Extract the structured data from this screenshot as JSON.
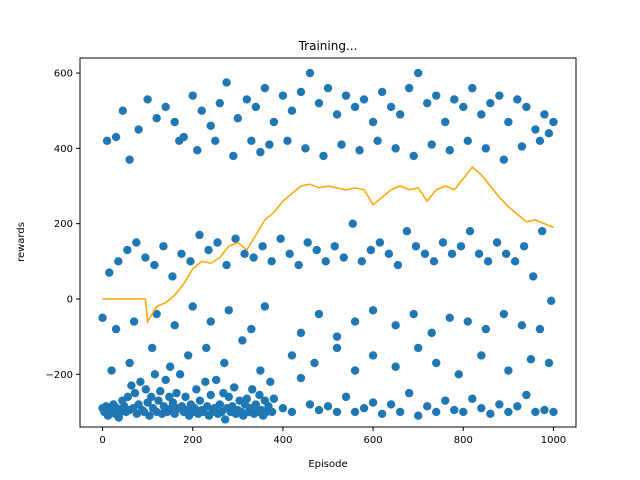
{
  "chart_data": {
    "type": "scatter",
    "title": "Training...",
    "xlabel": "Episode",
    "ylabel": "rewards",
    "xlim": [
      -50,
      1050
    ],
    "ylim": [
      -340,
      640
    ],
    "xticks": [
      0,
      200,
      400,
      600,
      800,
      1000
    ],
    "yticks": [
      -200,
      0,
      200,
      400,
      600
    ],
    "grid": false,
    "colors": {
      "scatter": "#1f77b4",
      "line": "#ffa500"
    },
    "points": [
      [
        0,
        -290
      ],
      [
        4,
        -300
      ],
      [
        8,
        -285
      ],
      [
        12,
        -310
      ],
      [
        16,
        -295
      ],
      [
        20,
        -300
      ],
      [
        24,
        -280
      ],
      [
        28,
        -305
      ],
      [
        32,
        -290
      ],
      [
        36,
        -315
      ],
      [
        40,
        -300
      ],
      [
        44,
        -270
      ],
      [
        48,
        -285
      ],
      [
        52,
        -300
      ],
      [
        56,
        -260
      ],
      [
        60,
        -295
      ],
      [
        64,
        -230
      ],
      [
        68,
        -290
      ],
      [
        72,
        -250
      ],
      [
        76,
        -305
      ],
      [
        80,
        -280
      ],
      [
        84,
        -220
      ],
      [
        88,
        -295
      ],
      [
        92,
        -300
      ],
      [
        96,
        -240
      ],
      [
        100,
        -275
      ],
      [
        104,
        -310
      ],
      [
        108,
        -260
      ],
      [
        112,
        -290
      ],
      [
        116,
        -200
      ],
      [
        120,
        -300
      ],
      [
        124,
        -270
      ],
      [
        128,
        -245
      ],
      [
        132,
        -305
      ],
      [
        136,
        -285
      ],
      [
        140,
        -215
      ],
      [
        144,
        -300
      ],
      [
        148,
        -260
      ],
      [
        152,
        -290
      ],
      [
        156,
        -275
      ],
      [
        160,
        -305
      ],
      [
        164,
        -250
      ],
      [
        168,
        -290
      ],
      [
        172,
        -200
      ],
      [
        176,
        -285
      ],
      [
        180,
        -300
      ],
      [
        184,
        -260
      ],
      [
        188,
        -295
      ],
      [
        192,
        -310
      ],
      [
        196,
        -280
      ],
      [
        200,
        -300
      ],
      [
        204,
        -290
      ],
      [
        208,
        -240
      ],
      [
        212,
        -305
      ],
      [
        216,
        -270
      ],
      [
        220,
        -295
      ],
      [
        224,
        -300
      ],
      [
        228,
        -220
      ],
      [
        232,
        -285
      ],
      [
        236,
        -310
      ],
      [
        240,
        -255
      ],
      [
        244,
        -300
      ],
      [
        248,
        -290
      ],
      [
        252,
        -215
      ],
      [
        256,
        -305
      ],
      [
        260,
        -280
      ],
      [
        264,
        -300
      ],
      [
        268,
        -250
      ],
      [
        272,
        -320
      ],
      [
        276,
        -290
      ],
      [
        280,
        -260
      ],
      [
        284,
        -300
      ],
      [
        288,
        -285
      ],
      [
        292,
        -235
      ],
      [
        296,
        -305
      ],
      [
        300,
        -295
      ],
      [
        304,
        -270
      ],
      [
        308,
        -300
      ],
      [
        312,
        -310
      ],
      [
        316,
        -280
      ],
      [
        320,
        -265
      ],
      [
        324,
        -300
      ],
      [
        328,
        -290
      ],
      [
        332,
        -240
      ],
      [
        336,
        -305
      ],
      [
        340,
        -280
      ],
      [
        344,
        -300
      ],
      [
        348,
        -255
      ],
      [
        352,
        -295
      ],
      [
        356,
        -310
      ],
      [
        360,
        -270
      ],
      [
        364,
        -300
      ],
      [
        368,
        -285
      ],
      [
        372,
        -220
      ],
      [
        376,
        -300
      ],
      [
        380,
        -265
      ],
      [
        400,
        -290
      ],
      [
        420,
        -300
      ],
      [
        440,
        -210
      ],
      [
        460,
        -280
      ],
      [
        480,
        -295
      ],
      [
        500,
        -285
      ],
      [
        520,
        -300
      ],
      [
        540,
        -260
      ],
      [
        560,
        -300
      ],
      [
        580,
        -290
      ],
      [
        600,
        -275
      ],
      [
        620,
        -305
      ],
      [
        640,
        -280
      ],
      [
        660,
        -300
      ],
      [
        680,
        -250
      ],
      [
        700,
        -310
      ],
      [
        720,
        -285
      ],
      [
        740,
        -300
      ],
      [
        760,
        -270
      ],
      [
        780,
        -295
      ],
      [
        800,
        -300
      ],
      [
        820,
        -265
      ],
      [
        840,
        -290
      ],
      [
        860,
        -305
      ],
      [
        880,
        -280
      ],
      [
        900,
        -300
      ],
      [
        920,
        -285
      ],
      [
        940,
        -255
      ],
      [
        960,
        -300
      ],
      [
        980,
        -295
      ],
      [
        1000,
        -300
      ],
      [
        20,
        -190
      ],
      [
        60,
        -170
      ],
      [
        110,
        -130
      ],
      [
        150,
        -180
      ],
      [
        190,
        -150
      ],
      [
        230,
        -130
      ],
      [
        270,
        -170
      ],
      [
        310,
        -110
      ],
      [
        350,
        -190
      ],
      [
        420,
        -150
      ],
      [
        470,
        -170
      ],
      [
        520,
        -130
      ],
      [
        560,
        -190
      ],
      [
        600,
        -150
      ],
      [
        650,
        -180
      ],
      [
        700,
        -130
      ],
      [
        740,
        -170
      ],
      [
        790,
        -200
      ],
      [
        840,
        -150
      ],
      [
        900,
        -190
      ],
      [
        950,
        -160
      ],
      [
        990,
        -170
      ],
      [
        30,
        -80
      ],
      [
        70,
        -60
      ],
      [
        120,
        -40
      ],
      [
        160,
        -70
      ],
      [
        200,
        -20
      ],
      [
        240,
        -60
      ],
      [
        280,
        -30
      ],
      [
        330,
        -80
      ],
      [
        360,
        -20
      ],
      [
        440,
        -90
      ],
      [
        480,
        -40
      ],
      [
        520,
        -100
      ],
      [
        560,
        -60
      ],
      [
        600,
        -30
      ],
      [
        650,
        -70
      ],
      [
        690,
        -40
      ],
      [
        730,
        -90
      ],
      [
        770,
        -50
      ],
      [
        810,
        -60
      ],
      [
        850,
        -80
      ],
      [
        890,
        -40
      ],
      [
        930,
        -70
      ],
      [
        970,
        -80
      ],
      [
        0,
        -50
      ],
      [
        15,
        70
      ],
      [
        35,
        100
      ],
      [
        55,
        130
      ],
      [
        75,
        150
      ],
      [
        95,
        110
      ],
      [
        115,
        90
      ],
      [
        135,
        140
      ],
      [
        155,
        60
      ],
      [
        175,
        120
      ],
      [
        195,
        100
      ],
      [
        215,
        170
      ],
      [
        235,
        130
      ],
      [
        255,
        150
      ],
      [
        275,
        90
      ],
      [
        295,
        160
      ],
      [
        315,
        120
      ],
      [
        335,
        110
      ],
      [
        355,
        140
      ],
      [
        375,
        100
      ],
      [
        395,
        160
      ],
      [
        415,
        120
      ],
      [
        435,
        90
      ],
      [
        455,
        150
      ],
      [
        475,
        130
      ],
      [
        495,
        100
      ],
      [
        515,
        140
      ],
      [
        535,
        110
      ],
      [
        555,
        200
      ],
      [
        575,
        100
      ],
      [
        595,
        130
      ],
      [
        615,
        150
      ],
      [
        635,
        120
      ],
      [
        655,
        90
      ],
      [
        675,
        180
      ],
      [
        695,
        140
      ],
      [
        715,
        120
      ],
      [
        735,
        100
      ],
      [
        755,
        150
      ],
      [
        775,
        120
      ],
      [
        795,
        140
      ],
      [
        815,
        180
      ],
      [
        835,
        120
      ],
      [
        855,
        100
      ],
      [
        875,
        150
      ],
      [
        895,
        120
      ],
      [
        915,
        100
      ],
      [
        935,
        140
      ],
      [
        955,
        60
      ],
      [
        975,
        180
      ],
      [
        995,
        -5
      ],
      [
        10,
        420
      ],
      [
        30,
        430
      ],
      [
        45,
        500
      ],
      [
        60,
        370
      ],
      [
        80,
        450
      ],
      [
        100,
        530
      ],
      [
        120,
        480
      ],
      [
        140,
        510
      ],
      [
        160,
        470
      ],
      [
        180,
        430
      ],
      [
        200,
        540
      ],
      [
        220,
        500
      ],
      [
        240,
        460
      ],
      [
        260,
        520
      ],
      [
        275,
        575
      ],
      [
        300,
        480
      ],
      [
        320,
        530
      ],
      [
        340,
        510
      ],
      [
        360,
        560
      ],
      [
        380,
        470
      ],
      [
        400,
        540
      ],
      [
        420,
        500
      ],
      [
        440,
        550
      ],
      [
        460,
        600
      ],
      [
        480,
        520
      ],
      [
        500,
        560
      ],
      [
        520,
        490
      ],
      [
        540,
        540
      ],
      [
        560,
        510
      ],
      [
        580,
        530
      ],
      [
        600,
        470
      ],
      [
        620,
        550
      ],
      [
        640,
        510
      ],
      [
        660,
        490
      ],
      [
        680,
        560
      ],
      [
        700,
        600
      ],
      [
        720,
        520
      ],
      [
        740,
        540
      ],
      [
        760,
        470
      ],
      [
        780,
        530
      ],
      [
        800,
        510
      ],
      [
        820,
        560
      ],
      [
        840,
        490
      ],
      [
        860,
        520
      ],
      [
        880,
        540
      ],
      [
        900,
        470
      ],
      [
        920,
        530
      ],
      [
        940,
        510
      ],
      [
        960,
        450
      ],
      [
        980,
        490
      ],
      [
        1000,
        470
      ],
      [
        170,
        420
      ],
      [
        210,
        395
      ],
      [
        250,
        420
      ],
      [
        290,
        380
      ],
      [
        330,
        420
      ],
      [
        350,
        390
      ],
      [
        370,
        410
      ],
      [
        410,
        420
      ],
      [
        450,
        400
      ],
      [
        490,
        380
      ],
      [
        530,
        410
      ],
      [
        570,
        395
      ],
      [
        610,
        420
      ],
      [
        650,
        400
      ],
      [
        690,
        380
      ],
      [
        730,
        410
      ],
      [
        770,
        395
      ],
      [
        810,
        420
      ],
      [
        850,
        400
      ],
      [
        890,
        370
      ],
      [
        930,
        405
      ],
      [
        970,
        420
      ],
      [
        990,
        440
      ]
    ],
    "moving_average": [
      [
        0,
        0
      ],
      [
        20,
        0
      ],
      [
        40,
        0
      ],
      [
        60,
        0
      ],
      [
        80,
        0
      ],
      [
        95,
        0
      ],
      [
        100,
        -60
      ],
      [
        110,
        -40
      ],
      [
        120,
        -20
      ],
      [
        140,
        -10
      ],
      [
        160,
        10
      ],
      [
        180,
        40
      ],
      [
        200,
        80
      ],
      [
        220,
        100
      ],
      [
        240,
        95
      ],
      [
        260,
        110
      ],
      [
        280,
        140
      ],
      [
        300,
        150
      ],
      [
        320,
        130
      ],
      [
        340,
        170
      ],
      [
        360,
        210
      ],
      [
        380,
        230
      ],
      [
        400,
        260
      ],
      [
        420,
        280
      ],
      [
        440,
        300
      ],
      [
        460,
        305
      ],
      [
        480,
        295
      ],
      [
        500,
        300
      ],
      [
        520,
        295
      ],
      [
        540,
        290
      ],
      [
        560,
        295
      ],
      [
        580,
        290
      ],
      [
        600,
        250
      ],
      [
        620,
        270
      ],
      [
        640,
        290
      ],
      [
        660,
        300
      ],
      [
        680,
        290
      ],
      [
        700,
        295
      ],
      [
        720,
        260
      ],
      [
        740,
        290
      ],
      [
        760,
        300
      ],
      [
        780,
        290
      ],
      [
        800,
        320
      ],
      [
        820,
        350
      ],
      [
        840,
        330
      ],
      [
        860,
        300
      ],
      [
        880,
        270
      ],
      [
        900,
        245
      ],
      [
        920,
        225
      ],
      [
        940,
        205
      ],
      [
        960,
        210
      ],
      [
        980,
        200
      ],
      [
        1000,
        190
      ]
    ]
  }
}
